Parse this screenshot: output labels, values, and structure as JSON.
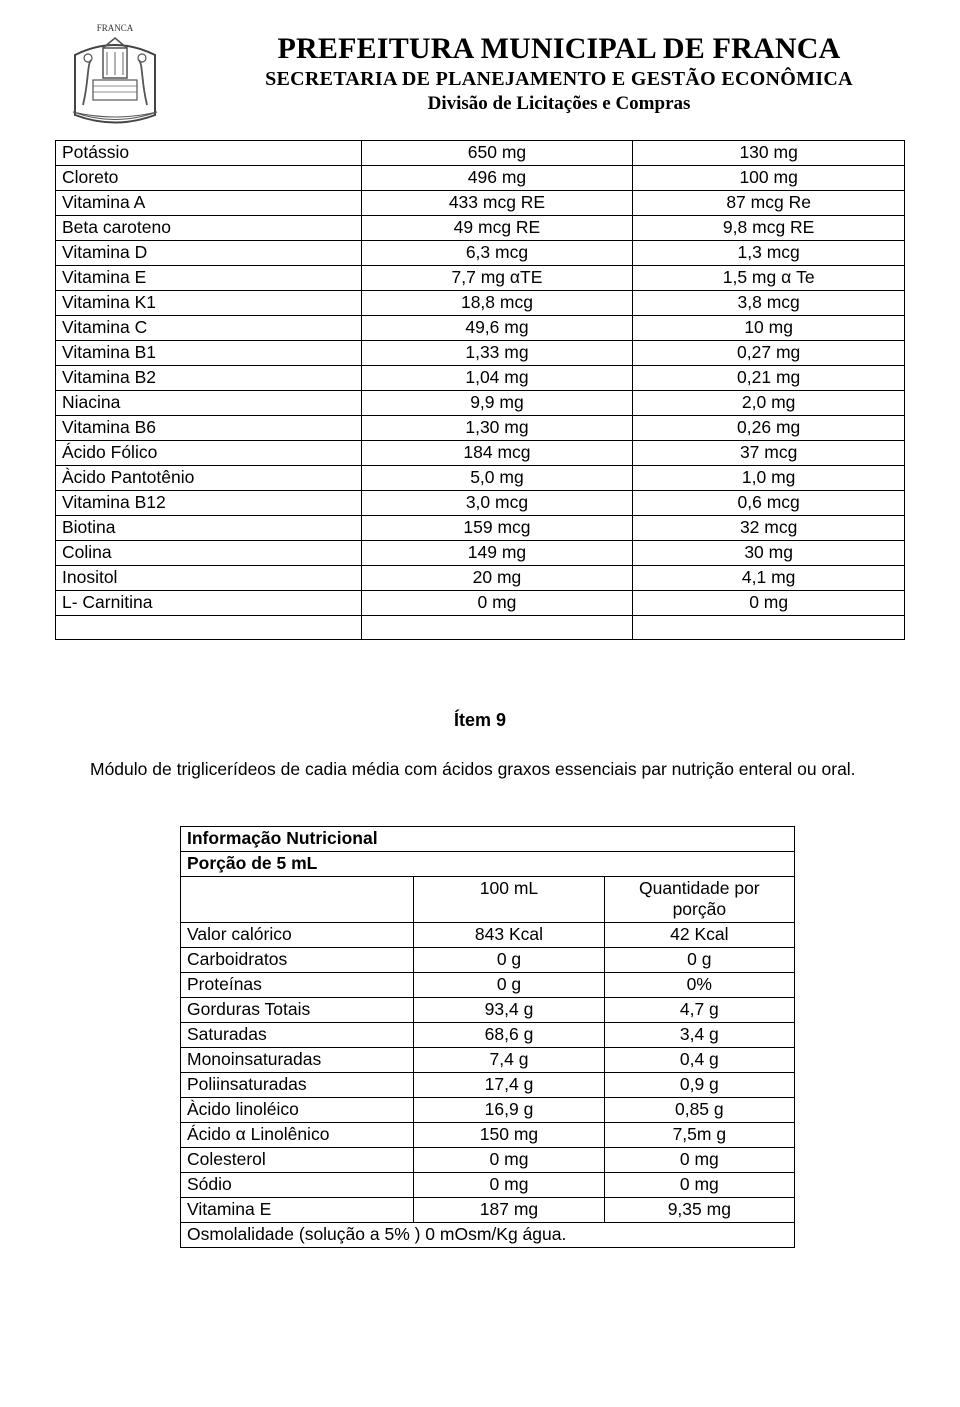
{
  "header": {
    "line1": "PREFEITURA MUNICIPAL DE FRANCA",
    "line2": "SECRETARIA DE PLANEJAMENTO E GESTÃO ECONÔMICA",
    "line3": "Divisão de Licitações e Compras"
  },
  "table1": {
    "rows": [
      [
        "Potássio",
        "650 mg",
        "130 mg"
      ],
      [
        "Cloreto",
        "496 mg",
        "100 mg"
      ],
      [
        "Vitamina A",
        "433 mcg RE",
        "87 mcg Re"
      ],
      [
        "Beta caroteno",
        "49 mcg RE",
        "9,8 mcg RE"
      ],
      [
        "Vitamina D",
        "6,3 mcg",
        "1,3 mcg"
      ],
      [
        "Vitamina E",
        "7,7 mg αTE",
        "1,5 mg α Te"
      ],
      [
        "Vitamina K1",
        "18,8 mcg",
        "3,8 mcg"
      ],
      [
        "Vitamina C",
        "49,6 mg",
        "10 mg"
      ],
      [
        "Vitamina B1",
        "1,33 mg",
        "0,27 mg"
      ],
      [
        "Vitamina B2",
        "1,04 mg",
        "0,21 mg"
      ],
      [
        "Niacina",
        "9,9 mg",
        "2,0 mg"
      ],
      [
        "Vitamina B6",
        "1,30 mg",
        "0,26 mg"
      ],
      [
        " Ácido Fólico",
        "184 mcg",
        "37 mcg"
      ],
      [
        "Àcido Pantotênio",
        "5,0 mg",
        "1,0 mg"
      ],
      [
        "Vitamina B12",
        "3,0 mcg",
        "0,6 mcg"
      ],
      [
        "Biotina",
        "159 mcg",
        "32 mcg"
      ],
      [
        "Colina",
        "149 mg",
        "30 mg"
      ],
      [
        "Inositol",
        "20 mg",
        "4,1 mg"
      ],
      [
        "L- Carnitina",
        "0 mg",
        "0 mg"
      ],
      [
        "",
        "",
        ""
      ]
    ]
  },
  "item_heading": "Ítem 9",
  "paragraph": "Módulo de triglicerídeos de cadia média com ácidos graxos essenciais par nutrição enteral ou oral.",
  "table2": {
    "title": "Informação Nutricional",
    "portion": "Porção de 5 mL",
    "col2": "100 mL",
    "col3": "Quantidade por porção",
    "rows": [
      [
        "Valor calórico",
        "843 Kcal",
        "42 Kcal"
      ],
      [
        "Carboidratos",
        "0 g",
        "0 g"
      ],
      [
        "Proteínas",
        "0 g",
        "0%"
      ],
      [
        "Gorduras Totais",
        "        93,4 g",
        "4,7 g"
      ],
      [
        "Saturadas",
        "68,6 g",
        "3,4 g"
      ],
      [
        "Monoinsaturadas",
        "7,4 g",
        "0,4 g"
      ],
      [
        "Poliinsaturadas",
        "17,4 g",
        "0,9 g"
      ],
      [
        " Àcido linoléico",
        "16,9 g",
        "          0,85 g"
      ],
      [
        "Ácido α Linolênico",
        "       150 mg",
        "7,5m g"
      ],
      [
        "Colesterol",
        "0 mg",
        "0 mg"
      ],
      [
        "Sódio",
        "0 mg",
        "0 mg"
      ],
      [
        "Vitamina E",
        "187 mg",
        "9,35 mg"
      ]
    ],
    "osmo": "Osmolalidade (solução a 5% ) 0 mOsm/Kg água."
  },
  "colors": {
    "text": "#000000",
    "border": "#000000",
    "background": "#ffffff"
  }
}
